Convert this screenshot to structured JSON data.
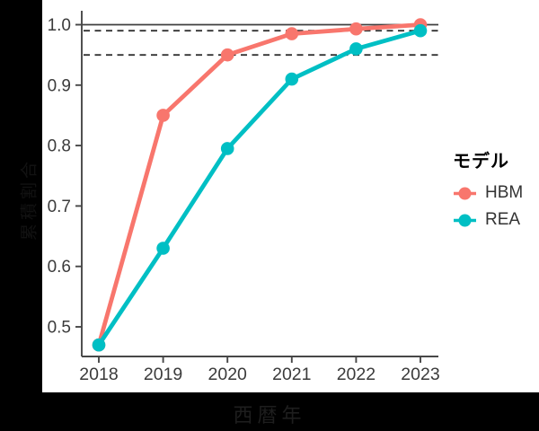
{
  "figure": {
    "outer_background": "#000000",
    "panel_background": "#ffffff",
    "axis_color": "#474747",
    "tick_label_color": "#3b3b3b",
    "reference_line_color": "#333333"
  },
  "chart_data": {
    "type": "line",
    "x": [
      2018,
      2019,
      2020,
      2021,
      2022,
      2023
    ],
    "xtick_labels": [
      "2018",
      "2019",
      "2020",
      "2021",
      "2022",
      "2023"
    ],
    "yticks": [
      0.5,
      0.6,
      0.7,
      0.8,
      0.9,
      1.0
    ],
    "ytick_labels": [
      "0.5",
      "0.6",
      "0.7",
      "0.8",
      "0.9",
      "1.0"
    ],
    "ylim": [
      0.455,
      1.023
    ],
    "series": [
      {
        "name": "HBM",
        "color": "#F8766D",
        "values": [
          0.47,
          0.85,
          0.95,
          0.985,
          0.993,
          1.0
        ]
      },
      {
        "name": "REA",
        "color": "#00BFC4",
        "values": [
          0.47,
          0.63,
          0.795,
          0.91,
          0.96,
          0.99
        ]
      }
    ],
    "reference_lines": {
      "solid": [
        1.0
      ],
      "dashed": [
        0.99,
        0.95
      ]
    },
    "title": "",
    "xlabel": "西暦年",
    "ylabel": "累積割合",
    "legend": {
      "title": "モデル",
      "position": "right"
    },
    "grid": false
  }
}
